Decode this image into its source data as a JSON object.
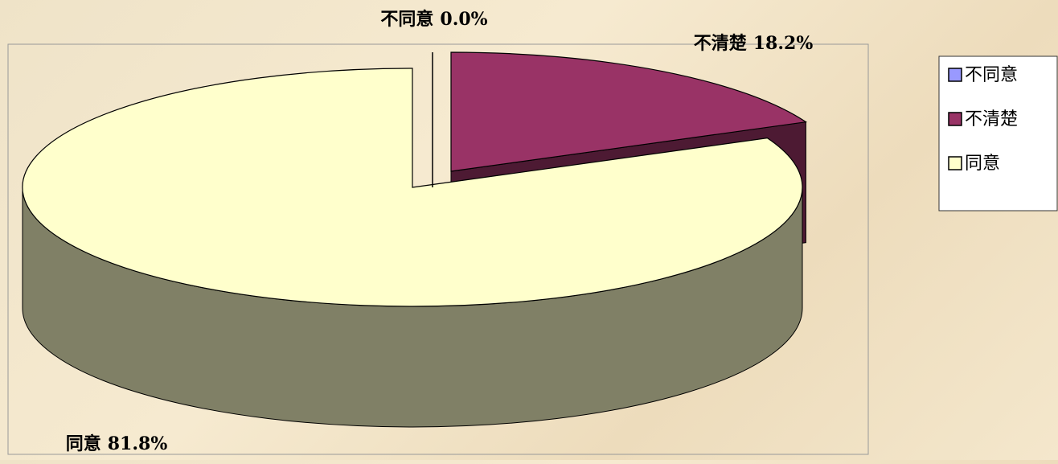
{
  "chart_data": {
    "type": "pie",
    "categories": [
      "不同意",
      "不清楚",
      "同意"
    ],
    "values": [
      0.0,
      18.2,
      81.8
    ],
    "value_labels": [
      "0.0%",
      "18.2%",
      "81.8%"
    ],
    "colors": [
      "#9999ff",
      "#993366",
      "#ffffcc"
    ],
    "legend": "right",
    "three_d": true
  }
}
